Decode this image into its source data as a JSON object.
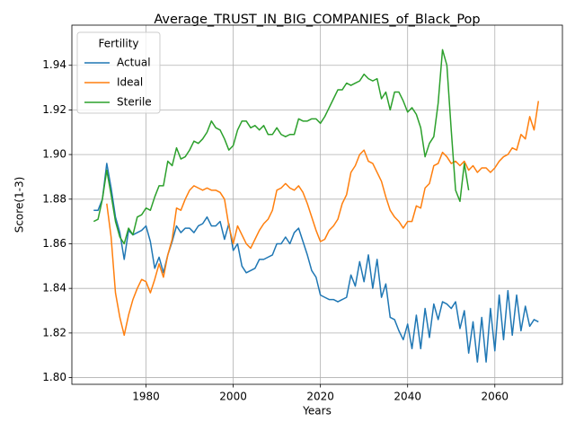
{
  "chart_data": {
    "type": "line",
    "title": "Average_TRUST_IN_BIG_COMPANIES_of_Black_Pop",
    "x_label": "Years",
    "y_label": "Score(1-3)",
    "legend_title": "Fertility",
    "legend": "upper left",
    "grid": true,
    "x": [
      1968,
      1969,
      1970,
      1971,
      1972,
      1973,
      1974,
      1975,
      1976,
      1977,
      1978,
      1979,
      1980,
      1981,
      1982,
      1983,
      1984,
      1985,
      1986,
      1987,
      1988,
      1989,
      1990,
      1991,
      1992,
      1993,
      1994,
      1995,
      1996,
      1997,
      1998,
      1999,
      2000,
      2001,
      2002,
      2003,
      2004,
      2005,
      2006,
      2007,
      2008,
      2009,
      2010,
      2011,
      2012,
      2013,
      2014,
      2015,
      2016,
      2017,
      2018,
      2019,
      2020,
      2021,
      2022,
      2023,
      2024,
      2025,
      2026,
      2027,
      2028,
      2029,
      2030,
      2031,
      2032,
      2033,
      2034,
      2035,
      2036,
      2037,
      2038,
      2039,
      2040,
      2041,
      2042,
      2043,
      2044,
      2045,
      2046,
      2047,
      2048,
      2049,
      2050,
      2051,
      2052,
      2053,
      2054,
      2055,
      2056,
      2057,
      2058,
      2059,
      2060,
      2061,
      2062,
      2063,
      2064,
      2065,
      2066,
      2067,
      2068,
      2069,
      2070
    ],
    "xlim": [
      1963,
      2075.5
    ],
    "xticks": [
      1980,
      2000,
      2020,
      2040,
      2060
    ],
    "ylim": [
      1.797,
      1.958
    ],
    "yticks": [
      {
        "value": 1.8,
        "label": "1.80"
      },
      {
        "value": 1.82,
        "label": "1.82"
      },
      {
        "value": 1.84,
        "label": "1.84"
      },
      {
        "value": 1.86,
        "label": "1.86"
      },
      {
        "value": 1.88,
        "label": "1.88"
      },
      {
        "value": 1.9,
        "label": "1.90"
      },
      {
        "value": 1.92,
        "label": "1.92"
      },
      {
        "value": 1.94,
        "label": "1.94"
      }
    ],
    "series": [
      {
        "name": "Actual",
        "color": "#1f77b4",
        "values": [
          1.875,
          1.875,
          1.88,
          1.896,
          1.885,
          1.872,
          1.865,
          1.853,
          1.866,
          1.864,
          1.865,
          1.866,
          1.868,
          1.861,
          1.849,
          1.854,
          1.847,
          1.855,
          1.861,
          1.868,
          1.865,
          1.867,
          1.867,
          1.865,
          1.868,
          1.869,
          1.872,
          1.868,
          1.868,
          1.87,
          1.862,
          1.869,
          1.857,
          1.86,
          1.85,
          1.847,
          1.848,
          1.849,
          1.853,
          1.853,
          1.854,
          1.855,
          1.86,
          1.86,
          1.863,
          1.86,
          1.865,
          1.867,
          1.861,
          1.855,
          1.848,
          1.845,
          1.837,
          1.836,
          1.835,
          1.835,
          1.834,
          1.835,
          1.836,
          1.846,
          1.841,
          1.852,
          1.843,
          1.855,
          1.84,
          1.853,
          1.836,
          1.842,
          1.827,
          1.826,
          1.821,
          1.817,
          1.824,
          1.813,
          1.828,
          1.813,
          1.831,
          1.818,
          1.833,
          1.826,
          1.834,
          1.833,
          1.831,
          1.834,
          1.822,
          1.83,
          1.811,
          1.825,
          1.807,
          1.827,
          1.807,
          1.831,
          1.812,
          1.837,
          1.817,
          1.839,
          1.819,
          1.837,
          1.821,
          1.832,
          1.823,
          1.826,
          1.825
        ]
      },
      {
        "name": "Ideal",
        "color": "#ff7f0e",
        "values": [
          null,
          null,
          null,
          1.878,
          1.863,
          1.838,
          1.827,
          1.819,
          1.828,
          1.835,
          1.84,
          1.844,
          1.843,
          1.838,
          1.844,
          1.851,
          1.845,
          1.855,
          1.862,
          1.876,
          1.875,
          1.88,
          1.884,
          1.886,
          1.885,
          1.884,
          1.885,
          1.884,
          1.884,
          1.883,
          1.88,
          1.868,
          1.86,
          1.868,
          1.864,
          1.86,
          1.858,
          1.862,
          1.866,
          1.869,
          1.871,
          1.875,
          1.884,
          1.885,
          1.887,
          1.885,
          1.884,
          1.886,
          1.883,
          1.878,
          1.872,
          1.866,
          1.861,
          1.862,
          1.866,
          1.868,
          1.871,
          1.878,
          1.882,
          1.892,
          1.895,
          1.9,
          1.902,
          1.897,
          1.896,
          1.892,
          1.888,
          1.881,
          1.875,
          1.872,
          1.87,
          1.867,
          1.87,
          1.87,
          1.877,
          1.876,
          1.885,
          1.887,
          1.895,
          1.896,
          1.901,
          1.899,
          1.896,
          1.897,
          1.895,
          1.897,
          1.893,
          1.895,
          1.892,
          1.894,
          1.894,
          1.892,
          1.894,
          1.897,
          1.899,
          1.9,
          1.903,
          1.902,
          1.909,
          1.907,
          1.917,
          1.911,
          1.924
        ]
      },
      {
        "name": "Sterile",
        "color": "#2ca02c",
        "values": [
          1.87,
          1.871,
          1.88,
          1.893,
          1.882,
          1.87,
          1.863,
          1.86,
          1.867,
          1.864,
          1.872,
          1.873,
          1.876,
          1.875,
          1.881,
          1.886,
          1.886,
          1.897,
          1.895,
          1.903,
          1.898,
          1.899,
          1.902,
          1.906,
          1.905,
          1.907,
          1.91,
          1.915,
          1.912,
          1.911,
          1.907,
          1.902,
          1.904,
          1.911,
          1.915,
          1.915,
          1.912,
          1.913,
          1.911,
          1.913,
          1.909,
          1.909,
          1.912,
          1.909,
          1.908,
          1.909,
          1.909,
          1.916,
          1.915,
          1.915,
          1.916,
          1.916,
          1.914,
          1.917,
          1.921,
          1.925,
          1.929,
          1.929,
          1.932,
          1.931,
          1.932,
          1.933,
          1.936,
          1.934,
          1.933,
          1.934,
          1.925,
          1.928,
          1.92,
          1.928,
          1.928,
          1.924,
          1.919,
          1.921,
          1.918,
          1.912,
          1.899,
          1.905,
          1.908,
          1.923,
          1.947,
          1.94,
          1.911,
          1.884,
          1.879,
          1.896,
          1.884,
          null,
          null,
          null,
          null,
          null,
          null,
          null,
          null,
          null,
          null,
          null,
          null,
          null,
          null,
          null,
          null
        ]
      }
    ]
  }
}
